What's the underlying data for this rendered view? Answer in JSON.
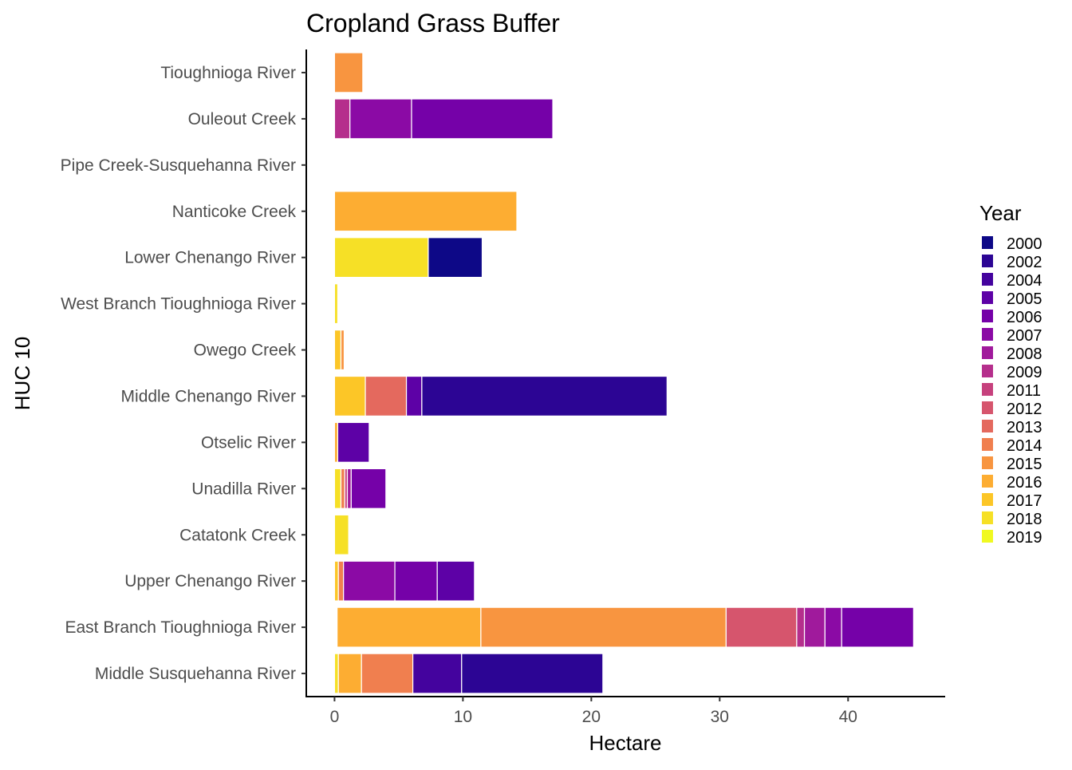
{
  "chart_data": {
    "type": "bar",
    "orientation": "horizontal",
    "stacked": true,
    "title": "Cropland Grass Buffer",
    "xlabel": "Hectare",
    "ylabel": "HUC 10",
    "xlim": [
      -2.2,
      47.5
    ],
    "xticks": [
      0,
      10,
      20,
      30,
      40
    ],
    "grid": false,
    "legend_position": "right",
    "legend_title": "Year",
    "categories": [
      "Tioughnioga River",
      "Ouleout Creek",
      "Pipe Creek-Susquehanna River",
      "Nanticoke Creek",
      "Lower Chenango River",
      "West Branch Tioughnioga River",
      "Owego Creek",
      "Middle Chenango River",
      "Otselic River",
      "Unadilla River",
      "Catatonk Creek",
      "Upper Chenango River",
      "East Branch Tioughnioga River",
      "Middle Susquehanna River"
    ],
    "legend": [
      {
        "name": "2000",
        "color": "#0d0887"
      },
      {
        "name": "2002",
        "color": "#2c0594"
      },
      {
        "name": "2004",
        "color": "#44039e"
      },
      {
        "name": "2005",
        "color": "#5d01a6"
      },
      {
        "name": "2006",
        "color": "#7501a8"
      },
      {
        "name": "2007",
        "color": "#8b0aa5"
      },
      {
        "name": "2008",
        "color": "#a01a9c"
      },
      {
        "name": "2009",
        "color": "#b52f8c"
      },
      {
        "name": "2011",
        "color": "#c6417d"
      },
      {
        "name": "2012",
        "color": "#d6556d"
      },
      {
        "name": "2013",
        "color": "#e4695e"
      },
      {
        "name": "2014",
        "color": "#f07f4f"
      },
      {
        "name": "2015",
        "color": "#f89540"
      },
      {
        "name": "2016",
        "color": "#fdad32"
      },
      {
        "name": "2017",
        "color": "#fcc627"
      },
      {
        "name": "2018",
        "color": "#f6e026"
      },
      {
        "name": "2019",
        "color": "#f0f921"
      }
    ],
    "bars": [
      {
        "category": "Tioughnioga River",
        "segments": [
          {
            "year": "2015",
            "start": 0,
            "end": 2.2
          }
        ]
      },
      {
        "category": "Ouleout Creek",
        "segments": [
          {
            "year": "2009",
            "start": 0,
            "end": 1.2
          },
          {
            "year": "2007",
            "start": 1.2,
            "end": 6.0
          },
          {
            "year": "2006",
            "start": 6.0,
            "end": 17.0
          }
        ]
      },
      {
        "category": "Pipe Creek-Susquehanna River",
        "segments": []
      },
      {
        "category": "Nanticoke Creek",
        "segments": [
          {
            "year": "2016",
            "start": 0,
            "end": 14.2
          }
        ]
      },
      {
        "category": "Lower Chenango River",
        "segments": [
          {
            "year": "2018",
            "start": 0,
            "end": 7.3
          },
          {
            "year": "2000",
            "start": 7.3,
            "end": 11.5
          }
        ]
      },
      {
        "category": "West Branch Tioughnioga River",
        "segments": [
          {
            "year": "2018",
            "start": 0,
            "end": 0.25
          }
        ]
      },
      {
        "category": "Owego Creek",
        "segments": [
          {
            "year": "2017",
            "start": 0,
            "end": 0.5
          },
          {
            "year": "2015",
            "start": 0.5,
            "end": 0.75
          }
        ]
      },
      {
        "category": "Middle Chenango River",
        "segments": [
          {
            "year": "2017",
            "start": 0,
            "end": 2.4
          },
          {
            "year": "2013",
            "start": 2.4,
            "end": 5.6
          },
          {
            "year": "2005",
            "start": 5.6,
            "end": 6.8
          },
          {
            "year": "2002",
            "start": 6.8,
            "end": 25.9
          }
        ]
      },
      {
        "category": "Otselic River",
        "segments": [
          {
            "year": "2016",
            "start": 0,
            "end": 0.25
          },
          {
            "year": "2005",
            "start": 0.25,
            "end": 2.7
          }
        ]
      },
      {
        "category": "Unadilla River",
        "segments": [
          {
            "year": "2018",
            "start": 0,
            "end": 0.5
          },
          {
            "year": "2014",
            "start": 0.5,
            "end": 0.8
          },
          {
            "year": "2011",
            "start": 0.8,
            "end": 1.0
          },
          {
            "year": "2008",
            "start": 1.0,
            "end": 1.3
          },
          {
            "year": "2006",
            "start": 1.3,
            "end": 4.0
          }
        ]
      },
      {
        "category": "Catatonk Creek",
        "segments": [
          {
            "year": "2018",
            "start": 0,
            "end": 1.1
          }
        ]
      },
      {
        "category": "Upper Chenango River",
        "segments": [
          {
            "year": "2017",
            "start": 0,
            "end": 0.3
          },
          {
            "year": "2014",
            "start": 0.3,
            "end": 0.7
          },
          {
            "year": "2007",
            "start": 0.7,
            "end": 4.7
          },
          {
            "year": "2006",
            "start": 4.7,
            "end": 8.0
          },
          {
            "year": "2005",
            "start": 8.0,
            "end": 10.9
          }
        ]
      },
      {
        "category": "East Branch Tioughnioga River",
        "segments": [
          {
            "year": "2016",
            "start": 0.2,
            "end": 11.4
          },
          {
            "year": "2015",
            "start": 11.4,
            "end": 30.5
          },
          {
            "year": "2012",
            "start": 30.5,
            "end": 36.0
          },
          {
            "year": "2009",
            "start": 36.0,
            "end": 36.6
          },
          {
            "year": "2008",
            "start": 36.6,
            "end": 38.2
          },
          {
            "year": "2007",
            "start": 38.2,
            "end": 39.5
          },
          {
            "year": "2006",
            "start": 39.5,
            "end": 45.1
          }
        ]
      },
      {
        "category": "Middle Susquehanna River",
        "segments": [
          {
            "year": "2018",
            "start": 0,
            "end": 0.3
          },
          {
            "year": "2016",
            "start": 0.3,
            "end": 2.1
          },
          {
            "year": "2014",
            "start": 2.1,
            "end": 6.1
          },
          {
            "year": "2004",
            "start": 6.1,
            "end": 9.9
          },
          {
            "year": "2002",
            "start": 9.9,
            "end": 20.9
          }
        ]
      }
    ]
  }
}
